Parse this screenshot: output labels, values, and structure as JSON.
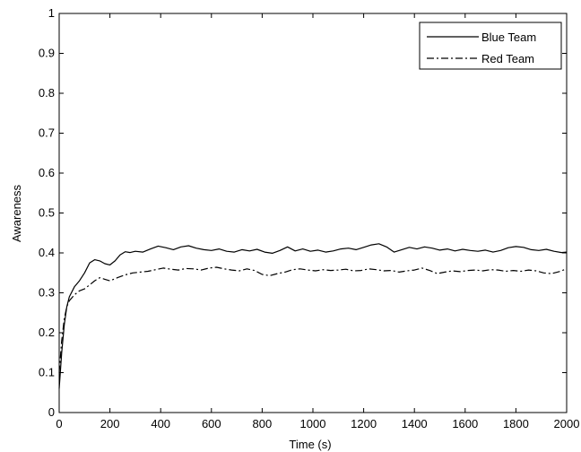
{
  "chart_data": {
    "type": "line",
    "title": "",
    "xlabel": "Time (s)",
    "ylabel": "Awareness",
    "xlim": [
      0,
      2000
    ],
    "ylim": [
      0,
      1
    ],
    "xticks": [
      0,
      200,
      400,
      600,
      800,
      1000,
      1200,
      1400,
      1600,
      1800,
      2000
    ],
    "yticks": [
      0,
      0.1,
      0.2,
      0.3,
      0.4,
      0.5,
      0.6,
      0.7,
      0.8,
      0.9,
      1
    ],
    "ytick_labels": [
      "0",
      "0.1",
      "0.2",
      "0.3",
      "0.4",
      "0.5",
      "0.6",
      "0.7",
      "0.8",
      "0.9",
      "1"
    ],
    "grid": false,
    "legend_position": "top-right",
    "series": [
      {
        "name": "Blue Team",
        "line_style": "solid",
        "color": "#000000",
        "x": [
          0,
          10,
          20,
          30,
          40,
          60,
          80,
          100,
          120,
          140,
          160,
          180,
          200,
          220,
          240,
          260,
          280,
          300,
          330,
          360,
          390,
          420,
          450,
          480,
          510,
          540,
          570,
          600,
          630,
          660,
          690,
          720,
          750,
          780,
          810,
          840,
          870,
          900,
          930,
          960,
          990,
          1020,
          1050,
          1080,
          1110,
          1140,
          1170,
          1200,
          1230,
          1260,
          1290,
          1320,
          1350,
          1380,
          1410,
          1440,
          1470,
          1500,
          1530,
          1560,
          1590,
          1620,
          1650,
          1680,
          1710,
          1740,
          1770,
          1800,
          1830,
          1860,
          1890,
          1920,
          1950,
          1980,
          2000
        ],
        "y": [
          0.06,
          0.15,
          0.22,
          0.265,
          0.29,
          0.315,
          0.33,
          0.35,
          0.375,
          0.383,
          0.38,
          0.373,
          0.37,
          0.38,
          0.395,
          0.403,
          0.401,
          0.404,
          0.402,
          0.41,
          0.417,
          0.413,
          0.408,
          0.415,
          0.418,
          0.412,
          0.408,
          0.406,
          0.41,
          0.404,
          0.402,
          0.408,
          0.405,
          0.409,
          0.402,
          0.399,
          0.406,
          0.415,
          0.405,
          0.41,
          0.404,
          0.407,
          0.402,
          0.405,
          0.41,
          0.412,
          0.408,
          0.414,
          0.42,
          0.423,
          0.415,
          0.402,
          0.408,
          0.414,
          0.41,
          0.415,
          0.412,
          0.407,
          0.41,
          0.405,
          0.409,
          0.406,
          0.404,
          0.407,
          0.402,
          0.406,
          0.413,
          0.416,
          0.414,
          0.408,
          0.406,
          0.409,
          0.404,
          0.401,
          0.402
        ]
      },
      {
        "name": "Red Team",
        "line_style": "dash-dot",
        "color": "#000000",
        "x": [
          0,
          10,
          20,
          30,
          40,
          60,
          80,
          100,
          120,
          140,
          160,
          180,
          200,
          230,
          260,
          290,
          320,
          350,
          380,
          410,
          440,
          470,
          500,
          530,
          560,
          590,
          620,
          650,
          680,
          710,
          740,
          770,
          800,
          830,
          860,
          890,
          920,
          950,
          980,
          1010,
          1040,
          1070,
          1100,
          1130,
          1160,
          1190,
          1220,
          1250,
          1280,
          1310,
          1340,
          1370,
          1400,
          1430,
          1460,
          1490,
          1520,
          1550,
          1580,
          1610,
          1640,
          1670,
          1700,
          1730,
          1760,
          1790,
          1820,
          1850,
          1880,
          1910,
          1940,
          1970,
          2000
        ],
        "y": [
          0.1,
          0.18,
          0.235,
          0.265,
          0.28,
          0.295,
          0.305,
          0.31,
          0.32,
          0.33,
          0.338,
          0.334,
          0.33,
          0.338,
          0.345,
          0.35,
          0.352,
          0.354,
          0.358,
          0.362,
          0.359,
          0.357,
          0.361,
          0.36,
          0.357,
          0.362,
          0.364,
          0.36,
          0.357,
          0.355,
          0.36,
          0.356,
          0.346,
          0.343,
          0.348,
          0.352,
          0.358,
          0.36,
          0.357,
          0.355,
          0.358,
          0.356,
          0.357,
          0.359,
          0.355,
          0.356,
          0.36,
          0.358,
          0.355,
          0.356,
          0.352,
          0.355,
          0.357,
          0.362,
          0.356,
          0.348,
          0.352,
          0.355,
          0.353,
          0.356,
          0.357,
          0.355,
          0.358,
          0.357,
          0.354,
          0.356,
          0.354,
          0.357,
          0.355,
          0.35,
          0.348,
          0.353,
          0.36
        ]
      }
    ]
  }
}
